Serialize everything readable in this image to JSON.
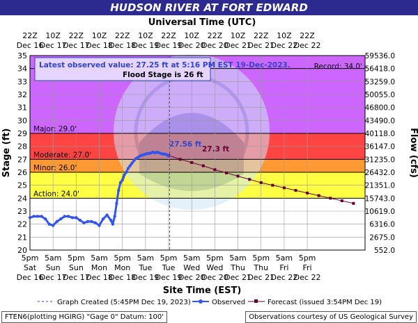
{
  "title": "HUDSON RIVER AT FORT EDWARD",
  "chart_data": {
    "type": "line",
    "top_axis_title": "Universal Time (UTC)",
    "xlabel": "Site Time (EST)",
    "ylabel": "Stage (ft)",
    "y2label": "Flow (cfs)",
    "ylim": [
      20,
      35
    ],
    "y_ticks": [
      20,
      21,
      22,
      23,
      24,
      25,
      26,
      27,
      28,
      29,
      30,
      31,
      32,
      33,
      34,
      35
    ],
    "x_range_hours": [
      0,
      174
    ],
    "bottom_ticks": [
      {
        "h": 0,
        "time": "5pm",
        "day": "Sat",
        "date": "Dec 16"
      },
      {
        "h": 12,
        "time": "5am",
        "day": "Sun",
        "date": "Dec 17"
      },
      {
        "h": 24,
        "time": "5pm",
        "day": "Sun",
        "date": "Dec 17"
      },
      {
        "h": 36,
        "time": "5am",
        "day": "Mon",
        "date": "Dec 18"
      },
      {
        "h": 48,
        "time": "5pm",
        "day": "Mon",
        "date": "Dec 18"
      },
      {
        "h": 60,
        "time": "5am",
        "day": "Tue",
        "date": "Dec 19"
      },
      {
        "h": 72,
        "time": "5pm",
        "day": "Tue",
        "date": "Dec 19"
      },
      {
        "h": 84,
        "time": "5am",
        "day": "Wed",
        "date": "Dec 20"
      },
      {
        "h": 96,
        "time": "5pm",
        "day": "Wed",
        "date": "Dec 20"
      },
      {
        "h": 108,
        "time": "5am",
        "day": "Thu",
        "date": "Dec 21"
      },
      {
        "h": 120,
        "time": "5pm",
        "day": "Thu",
        "date": "Dec 21"
      },
      {
        "h": 132,
        "time": "5am",
        "day": "Fri",
        "date": "Dec 22"
      },
      {
        "h": 144,
        "time": "5pm",
        "day": "Fri",
        "date": "Dec 22"
      }
    ],
    "top_ticks": [
      {
        "h": 0,
        "time": "22Z",
        "date": "Dec 16"
      },
      {
        "h": 12,
        "time": "10Z",
        "date": "Dec 17"
      },
      {
        "h": 24,
        "time": "22Z",
        "date": "Dec 17"
      },
      {
        "h": 36,
        "time": "10Z",
        "date": "Dec 18"
      },
      {
        "h": 48,
        "time": "22Z",
        "date": "Dec 18"
      },
      {
        "h": 60,
        "time": "10Z",
        "date": "Dec 19"
      },
      {
        "h": 72,
        "time": "22Z",
        "date": "Dec 19"
      },
      {
        "h": 84,
        "time": "10Z",
        "date": "Dec 20"
      },
      {
        "h": 96,
        "time": "22Z",
        "date": "Dec 20"
      },
      {
        "h": 108,
        "time": "10Z",
        "date": "Dec 21"
      },
      {
        "h": 120,
        "time": "22Z",
        "date": "Dec 21"
      },
      {
        "h": 132,
        "time": "10Z",
        "date": "Dec 22"
      },
      {
        "h": 144,
        "time": "22Z",
        "date": "Dec 22"
      }
    ],
    "flow_ticks": [
      {
        "stage": 35,
        "label": "59536.0"
      },
      {
        "stage": 34,
        "label": "56418.0"
      },
      {
        "stage": 33,
        "label": "53259.0"
      },
      {
        "stage": 32,
        "label": "50055.0"
      },
      {
        "stage": 31,
        "label": "46800.0"
      },
      {
        "stage": 30,
        "label": "43490.0"
      },
      {
        "stage": 29,
        "label": "40118.0"
      },
      {
        "stage": 28,
        "label": "36147.0"
      },
      {
        "stage": 27,
        "label": "31235.0"
      },
      {
        "stage": 26,
        "label": "26432.0"
      },
      {
        "stage": 25,
        "label": "21351.0"
      },
      {
        "stage": 24,
        "label": "15743.0"
      },
      {
        "stage": 23,
        "label": "10619.0"
      },
      {
        "stage": 22,
        "label": "6316.0"
      },
      {
        "stage": 21,
        "label": "2675.0"
      },
      {
        "stage": 20,
        "label": "552.0"
      }
    ],
    "bands": [
      {
        "from": 29,
        "to": 35,
        "color": "#cc66ff",
        "label": "Major: 29.0'"
      },
      {
        "from": 27,
        "to": 29,
        "color": "#ff4444",
        "label": "Moderate: 27.0'"
      },
      {
        "from": 26,
        "to": 27,
        "color": "#ff9933",
        "label": "Minor: 26.0'"
      },
      {
        "from": 24,
        "to": 26,
        "color": "#ffff44",
        "label": "Action: 24.0'"
      }
    ],
    "record": {
      "value": 34.0,
      "label": "Record: 34.0'"
    },
    "graph_created_hour": 72.5,
    "observed": {
      "name": "Observed",
      "color": "#3355ee",
      "x": [
        0,
        2,
        4,
        6,
        8,
        10,
        12,
        14,
        16,
        18,
        20,
        22,
        24,
        26,
        28,
        30,
        32,
        34,
        36,
        38,
        40,
        42,
        43,
        44,
        45,
        46,
        47,
        48,
        48.5,
        49,
        50,
        51,
        52,
        53,
        54,
        55,
        56,
        57,
        58,
        59,
        60,
        61,
        62,
        63,
        64,
        65,
        66,
        67,
        68,
        69,
        70,
        71,
        72
      ],
      "y": [
        22.5,
        22.6,
        22.6,
        22.6,
        22.4,
        22.0,
        21.9,
        22.2,
        22.4,
        22.6,
        22.6,
        22.5,
        22.5,
        22.3,
        22.1,
        22.2,
        22.2,
        22.1,
        21.9,
        22.4,
        22.7,
        22.3,
        22.0,
        22.6,
        23.6,
        24.6,
        25.2,
        25.4,
        25.6,
        25.8,
        26.0,
        26.3,
        26.5,
        26.7,
        26.9,
        27.05,
        27.15,
        27.25,
        27.3,
        27.35,
        27.4,
        27.45,
        27.45,
        27.5,
        27.55,
        27.5,
        27.55,
        27.5,
        27.45,
        27.4,
        27.4,
        27.35,
        27.25
      ]
    },
    "forecast": {
      "name": "Forecast (issued 3:54PM Dec 19)",
      "color": "#660033",
      "x": [
        72,
        78,
        84,
        90,
        96,
        102,
        108,
        114,
        120,
        126,
        132,
        138,
        144,
        150,
        156,
        162,
        168
      ],
      "y": [
        27.3,
        27.0,
        26.75,
        26.5,
        26.2,
        25.95,
        25.7,
        25.45,
        25.2,
        25.0,
        24.8,
        24.6,
        24.4,
        24.2,
        24.0,
        23.8,
        23.6
      ]
    },
    "latest_observed": "Latest observed value: 27.25 ft at 5:16 PM EST 19-Dec-2023.",
    "flood_stage_text": "Flood Stage is 26 ft",
    "peak_observed_label": "27.56 ft",
    "forecast_peak_label": "27.3 ft",
    "legend": {
      "graph_created": "Graph Created (5:45PM Dec 19, 2023)",
      "observed": "Observed",
      "forecast": "Forecast (issued 3:54PM Dec 19)"
    },
    "grid": true,
    "legend_placement": "bottom"
  },
  "footer": {
    "left": "FTEN6(plotting HGIRG) \"Gage 0\" Datum: 100'",
    "right": "Observations courtesy of US Geological Survey"
  }
}
